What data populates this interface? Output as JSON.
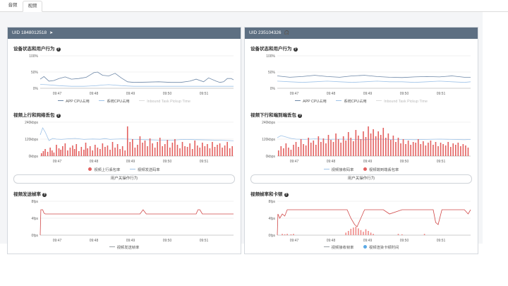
{
  "tabs": [
    {
      "label": "音频",
      "active": false
    },
    {
      "label": "视频",
      "active": true
    }
  ],
  "panels": [
    {
      "header": "UID 1848012518",
      "header_icon": "send-icon",
      "sections": {
        "device": {
          "title": "设备状态和用户行为"
        },
        "traffic": {
          "title": "视频上行和网络丢包"
        },
        "fps": {
          "title": "视频发送帧率"
        }
      },
      "button_label": "用户关操作行为",
      "legends": {
        "device": [
          "APP CPU占用",
          "系统CPU占用",
          "Inbound Task Pickup Time"
        ],
        "traffic": [
          "视频上行丢包率",
          "视频发送码率"
        ],
        "fps": [
          "视频发送帧率"
        ]
      }
    },
    {
      "header": "UID 235104326",
      "header_icon": "headset-icon",
      "sections": {
        "device": {
          "title": "设备状态和用户行为"
        },
        "traffic": {
          "title": "视频下行和端到端丢包"
        },
        "fps": {
          "title": "视频帧率和卡顿"
        }
      },
      "button_label": "用户关操作行为",
      "legends": {
        "device": [
          "APP CPU占用",
          "系统CPU占用",
          "Inbound Task Pickup Time"
        ],
        "traffic": [
          "视频接收码率",
          "视频端到端丢包率"
        ],
        "fps": [
          "视频接收帧率",
          "视频渲染卡顿时间"
        ]
      }
    }
  ],
  "colors": {
    "header_bg": "#5d6f82",
    "cpu_app": "#6d87a7",
    "cpu_sys": "#9fc3e8",
    "loss_bar": "#e3605f",
    "bitrate_line": "#9fc3e8",
    "fps_line": "#d04848",
    "fps_recv": "#9aa0a6",
    "stall_dot": "#5aa9e6"
  },
  "chart_data": [
    {
      "id": "p0-device",
      "type": "line",
      "title": "设备状态和用户行为",
      "yticks": [
        "100%",
        "50%",
        "0%"
      ],
      "ylim": [
        0,
        100
      ],
      "xticks": [
        "09:47",
        "09:48",
        "09:49",
        "09:50",
        "09:51"
      ],
      "xlim": [
        0,
        310
      ],
      "series": [
        {
          "name": "APP CPU占用",
          "x": [
            0,
            6,
            14,
            22,
            30,
            40,
            50,
            62,
            74,
            86,
            92,
            100,
            110,
            120,
            130,
            140,
            150,
            170,
            190,
            210,
            225,
            240,
            250,
            262,
            270,
            282,
            288,
            294,
            300,
            306,
            310
          ],
          "values": [
            28,
            36,
            22,
            24,
            30,
            35,
            28,
            30,
            34,
            48,
            50,
            40,
            38,
            46,
            32,
            20,
            18,
            19,
            20,
            18,
            18,
            22,
            28,
            20,
            32,
            22,
            18,
            20,
            30,
            30,
            26
          ]
        },
        {
          "name": "系统CPU占用",
          "x": [
            0,
            10,
            30,
            50,
            70,
            90,
            100,
            110,
            130,
            150,
            170,
            190,
            210,
            230,
            250,
            270,
            290,
            310
          ],
          "values": [
            12,
            11,
            8,
            6,
            6,
            8,
            10,
            11,
            8,
            6,
            6,
            6,
            6,
            6,
            6,
            6,
            6,
            6
          ]
        },
        {
          "name": "Inbound Task Pickup Time",
          "x": [],
          "values": []
        }
      ]
    },
    {
      "id": "p0-traffic",
      "type": "bar",
      "title": "视频上行和网络丢包",
      "yticks": [
        "240kbps",
        "120kbps",
        "0kbps"
      ],
      "ylim": [
        0,
        240
      ],
      "xticks": [
        "09:47",
        "09:48",
        "09:49",
        "09:50",
        "09:51"
      ],
      "xlim": [
        0,
        310
      ],
      "series": [
        {
          "name": "视频发送码率",
          "x": [
            0,
            4,
            8,
            14,
            20,
            26,
            34,
            44,
            56,
            70,
            84,
            96,
            104,
            112,
            120,
            132,
            150,
            170,
            190,
            210,
            230,
            250,
            270,
            290,
            310
          ],
          "values": [
            150,
            200,
            170,
            110,
            125,
            120,
            118,
            122,
            125,
            118,
            121,
            119,
            124,
            118,
            120,
            122,
            118,
            116,
            113,
            112,
            118,
            116,
            114,
            112,
            108
          ]
        },
        {
          "name": "视频上行丢包率",
          "x": [
            2,
            5,
            8,
            12,
            16,
            19,
            22,
            26,
            30,
            33,
            36,
            40,
            44,
            48,
            52,
            55,
            58,
            62,
            66,
            70,
            73,
            76,
            80,
            84,
            88,
            92,
            96,
            100,
            104,
            108,
            112,
            116,
            120,
            124,
            128,
            132,
            136,
            140,
            144,
            148,
            152,
            156,
            160,
            164,
            168,
            172,
            176,
            180,
            184,
            188,
            192,
            196,
            200,
            204,
            208,
            212,
            216,
            220,
            224,
            228,
            232,
            236,
            240,
            244,
            248,
            252,
            256,
            260,
            264,
            268,
            272,
            276,
            280,
            284,
            288,
            292,
            296,
            300,
            304,
            308
          ],
          "values": [
            20,
            35,
            50,
            30,
            60,
            40,
            25,
            80,
            55,
            45,
            70,
            90,
            40,
            60,
            75,
            50,
            85,
            35,
            65,
            45,
            95,
            55,
            70,
            40,
            80,
            60,
            50,
            90,
            65,
            75,
            45,
            100,
            60,
            85,
            50,
            70,
            40,
            210,
            100,
            120,
            60,
            80,
            140,
            95,
            110,
            70,
            125,
            90,
            60,
            100,
            130,
            70,
            85,
            115,
            60,
            95,
            120,
            80,
            55,
            100,
            70,
            65,
            90,
            50,
            110,
            75,
            60,
            95,
            70,
            85,
            55,
            100,
            65,
            80,
            90,
            60,
            75,
            100,
            55,
            70
          ]
        }
      ]
    },
    {
      "id": "p0-fps",
      "type": "line",
      "title": "视频发送帧率",
      "yticks": [
        "8fps",
        "4fps",
        "0fps"
      ],
      "ylim": [
        0,
        8
      ],
      "xticks": [
        "09:47",
        "09:48",
        "09:49",
        "09:50",
        "09:51"
      ],
      "xlim": [
        0,
        310
      ],
      "series": [
        {
          "name": "视频发送帧率",
          "x": [
            0,
            1,
            4,
            6,
            8,
            30,
            60,
            90,
            120,
            150,
            160,
            165,
            170,
            200,
            250,
            253,
            256,
            260,
            290,
            310
          ],
          "values": [
            0,
            6,
            6,
            5.2,
            5,
            5,
            5,
            5,
            5,
            5,
            5,
            6,
            5,
            5,
            5,
            6,
            6,
            5,
            5,
            5
          ]
        }
      ]
    },
    {
      "id": "p1-device",
      "type": "line",
      "title": "设备状态和用户行为",
      "yticks": [
        "100%",
        "50%",
        "0%"
      ],
      "ylim": [
        0,
        100
      ],
      "xticks": [
        "09:47",
        "09:48",
        "09:49",
        "09:50",
        "09:51"
      ],
      "xlim": [
        0,
        310
      ],
      "series": [
        {
          "name": "APP CPU占用",
          "x": [
            0,
            20,
            40,
            60,
            80,
            100,
            120,
            140,
            160,
            180,
            200,
            220,
            240,
            260,
            280,
            300,
            310
          ],
          "values": [
            38,
            34,
            36,
            40,
            36,
            34,
            38,
            40,
            36,
            34,
            33,
            35,
            36,
            35,
            38,
            34,
            34
          ]
        },
        {
          "name": "系统CPU占用",
          "x": [
            0,
            20,
            40,
            60,
            80,
            100,
            120,
            140,
            160,
            180,
            200,
            220,
            240,
            260,
            280,
            300,
            310
          ],
          "values": [
            22,
            20,
            18,
            20,
            22,
            20,
            18,
            20,
            22,
            20,
            20,
            18,
            20,
            22,
            20,
            18,
            20
          ]
        },
        {
          "name": "Inbound Task Pickup Time",
          "x": [],
          "values": []
        }
      ]
    },
    {
      "id": "p1-traffic",
      "type": "bar",
      "title": "视频下行和端到端丢包",
      "yticks": [
        "240kbps",
        "120kbps",
        "0kbps"
      ],
      "ylim": [
        0,
        240
      ],
      "xticks": [
        "09:47",
        "09:48",
        "09:49",
        "09:50",
        "09:51"
      ],
      "xlim": [
        0,
        310
      ],
      "series": [
        {
          "name": "视频接收码率",
          "x": [
            0,
            6,
            14,
            22,
            30,
            44,
            60,
            80,
            100,
            120,
            140,
            160,
            180,
            200,
            220,
            240,
            260,
            280,
            300,
            310
          ],
          "values": [
            130,
            145,
            135,
            125,
            120,
            118,
            122,
            118,
            120,
            118,
            116,
            120,
            118,
            118,
            116,
            118,
            120,
            118,
            116,
            118
          ]
        },
        {
          "name": "视频端到端丢包率",
          "x": [
            2,
            6,
            10,
            14,
            18,
            22,
            26,
            30,
            34,
            38,
            42,
            46,
            50,
            54,
            58,
            62,
            66,
            70,
            74,
            78,
            82,
            86,
            90,
            94,
            98,
            102,
            106,
            110,
            114,
            118,
            122,
            126,
            130,
            134,
            138,
            142,
            146,
            150,
            154,
            158,
            162,
            166,
            170,
            174,
            178,
            182,
            186,
            190,
            194,
            198,
            202,
            206,
            210,
            214,
            218,
            222,
            226,
            230,
            234,
            238,
            242,
            246,
            250,
            254,
            258,
            262,
            266,
            270,
            274,
            278,
            282,
            286,
            290,
            294,
            298,
            302,
            306
          ],
          "values": [
            40,
            70,
            55,
            90,
            60,
            45,
            80,
            100,
            65,
            120,
            85,
            75,
            130,
            95,
            110,
            80,
            140,
            100,
            125,
            90,
            150,
            115,
            100,
            160,
            120,
            95,
            140,
            110,
            170,
            130,
            105,
            185,
            145,
            120,
            175,
            135,
            210,
            160,
            190,
            140,
            175,
            150,
            200,
            130,
            160,
            115,
            145,
            100,
            130,
            90,
            120,
            85,
            110,
            80,
            100,
            95,
            120,
            85,
            105,
            75,
            95,
            110,
            80,
            100,
            70,
            95,
            85,
            75,
            100,
            65,
            90,
            80,
            95,
            70,
            85,
            75,
            60
          ]
        }
      ]
    },
    {
      "id": "p1-fps",
      "type": "line",
      "title": "视频帧率和卡顿",
      "yticks": [
        "8fps",
        "4fps",
        "0fps"
      ],
      "ylim": [
        0,
        8
      ],
      "xticks": [
        "09:47",
        "09:48",
        "09:49",
        "09:50",
        "09:51"
      ],
      "xlim": [
        0,
        310
      ],
      "series": [
        {
          "name": "视频接收帧率",
          "x": [
            0,
            1,
            4,
            8,
            12,
            16,
            20,
            30,
            40,
            50,
            60,
            80,
            100,
            112,
            118,
            124,
            128,
            134,
            140,
            150,
            160,
            170,
            180,
            200,
            220,
            240,
            250,
            254,
            258,
            264,
            270,
            290,
            300,
            306,
            310
          ],
          "values": [
            0,
            5,
            4,
            5,
            4.5,
            6,
            6,
            6,
            6,
            6,
            6,
            6,
            6,
            6,
            4,
            2.5,
            2,
            4,
            6,
            6,
            6,
            6,
            5,
            6,
            6,
            6,
            6,
            3,
            2.5,
            6,
            6,
            6,
            6,
            5,
            6
          ]
        },
        {
          "name": "视频渲染卡顿时间",
          "x": [
            8,
            12,
            16,
            22,
            26,
            110,
            114,
            118,
            122,
            126,
            130,
            134,
            138,
            142,
            146,
            150,
            154,
            194,
            200,
            236
          ],
          "values": [
            0.3,
            0.2,
            0.3,
            0.2,
            0.3,
            0.6,
            1.0,
            1.5,
            1.8,
            2.0,
            1.6,
            1.2,
            0.8,
            1.4,
            1.0,
            0.6,
            0.3,
            0.3,
            0.2,
            0.3
          ]
        }
      ]
    }
  ]
}
